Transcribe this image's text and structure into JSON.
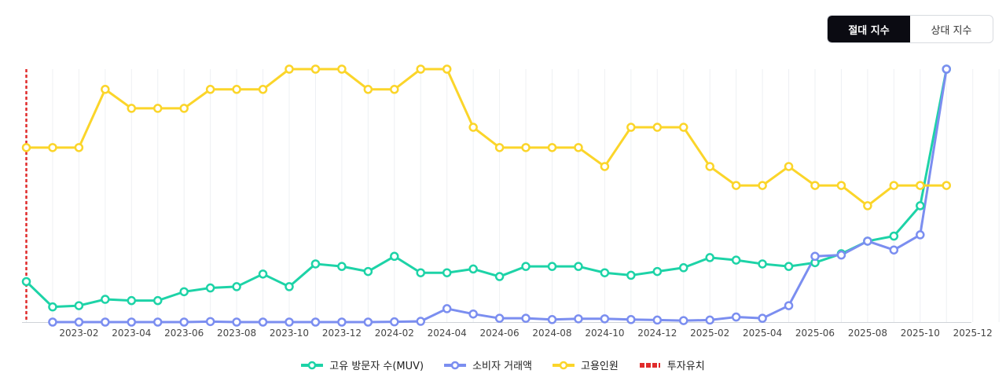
{
  "toggle": {
    "absolute_label": "절대 지수",
    "relative_label": "상대 지수"
  },
  "chart_data": {
    "type": "line",
    "x": [
      "2022-12",
      "2023-01",
      "2023-02",
      "2023-03",
      "2023-04",
      "2023-05",
      "2023-06",
      "2023-07",
      "2023-08",
      "2023-09",
      "2023-10",
      "2023-11",
      "2023-12",
      "2024-01",
      "2024-02",
      "2024-03",
      "2024-04",
      "2024-05",
      "2024-06",
      "2024-07",
      "2024-08",
      "2024-09",
      "2024-10",
      "2024-11",
      "2024-12",
      "2025-01",
      "2025-02",
      "2025-03",
      "2025-04",
      "2025-05",
      "2025-06",
      "2025-07",
      "2025-08",
      "2025-09",
      "2025-10",
      "2025-11"
    ],
    "tick_labels": [
      "2023-02",
      "2023-04",
      "2023-06",
      "2023-08",
      "2023-10",
      "2023-12",
      "2024-02",
      "2024-04",
      "2024-06",
      "2024-08",
      "2024-10",
      "2024-12",
      "2025-02",
      "2025-04",
      "2025-06",
      "2025-08",
      "2025-10",
      "2025-12"
    ],
    "ylim": [
      0,
      100
    ],
    "grid": true,
    "legend_position": "bottom",
    "series": [
      {
        "name": "고유 방문자 수(MUV)",
        "color": "#1dd3a7",
        "values": [
          16,
          6,
          6.5,
          9,
          8.5,
          8.5,
          12,
          13.5,
          14,
          19,
          14,
          23,
          22,
          20,
          26,
          19.5,
          19.5,
          21,
          18,
          22,
          22,
          22,
          19.5,
          18.5,
          20,
          21.5,
          25.5,
          24.5,
          23,
          22,
          23.5,
          27,
          32,
          34,
          46,
          100
        ]
      },
      {
        "name": "소비자 거래액",
        "color": "#7b8ef0",
        "values": [
          null,
          0,
          0,
          0,
          0,
          0,
          0,
          0.2,
          0,
          0,
          0,
          0,
          0,
          0,
          0.1,
          0.3,
          5.3,
          3.2,
          1.5,
          1.5,
          1,
          1.3,
          1.3,
          1,
          0.8,
          0.6,
          0.8,
          2,
          1.5,
          6.5,
          26,
          26.5,
          32,
          28.5,
          34.5,
          100
        ]
      },
      {
        "name": "고용인원",
        "color": "#fbd52a",
        "values": [
          69,
          69,
          69,
          92,
          84.5,
          84.5,
          84.5,
          92,
          92,
          92,
          100,
          100,
          100,
          92,
          92,
          100,
          100,
          77,
          69,
          69,
          69,
          69,
          61.5,
          77,
          77,
          77,
          61.5,
          54,
          54,
          61.5,
          54,
          54,
          46,
          54,
          54,
          54
        ]
      }
    ],
    "markers": [
      {
        "name": "투자유치",
        "color": "#e02b2b",
        "x": "2022-12",
        "style": "dashed"
      }
    ]
  }
}
